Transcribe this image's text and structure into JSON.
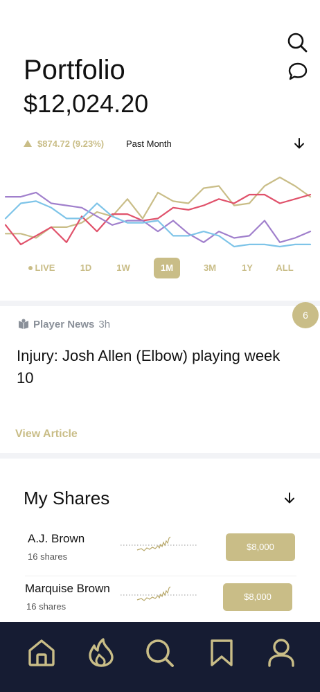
{
  "header": {
    "title": "Portfolio",
    "value": "$12,024.20",
    "search_icon": "search-icon",
    "chat_icon": "chat-bubble-icon"
  },
  "performance": {
    "change": "$874.72 (9.23%)",
    "period": "Past Month",
    "direction": "up"
  },
  "chart_data": {
    "type": "line",
    "x": [
      0,
      1,
      2,
      3,
      4,
      5,
      6,
      7,
      8,
      9,
      10,
      11,
      12,
      13,
      14,
      15,
      16,
      17,
      18,
      19,
      20
    ],
    "series": [
      {
        "color": "#c9bd87",
        "values": [
          0.3,
          0.3,
          0.2,
          0.45,
          0.45,
          0.55,
          0.8,
          0.7,
          1.1,
          0.65,
          1.25,
          1.05,
          1.0,
          1.35,
          1.4,
          0.95,
          1.0,
          1.4,
          1.6,
          1.4,
          1.15
        ]
      },
      {
        "color": "#e0526b",
        "values": [
          0.5,
          0.05,
          0.25,
          0.45,
          0.1,
          0.7,
          0.35,
          0.75,
          0.75,
          0.6,
          0.65,
          0.9,
          0.85,
          0.95,
          1.1,
          1.0,
          1.2,
          1.2,
          1.0,
          1.1,
          1.2
        ]
      },
      {
        "color": "#a07fcc",
        "values": [
          1.15,
          1.15,
          1.25,
          1.0,
          0.95,
          0.9,
          0.7,
          0.5,
          0.6,
          0.6,
          0.35,
          0.6,
          0.3,
          0.1,
          0.35,
          0.2,
          0.25,
          0.6,
          0.1,
          0.2,
          0.35
        ]
      },
      {
        "color": "#7ec4e8",
        "values": [
          0.65,
          1.0,
          1.05,
          0.9,
          0.65,
          0.65,
          1.0,
          0.7,
          0.55,
          0.55,
          0.6,
          0.25,
          0.25,
          0.35,
          0.25,
          0.0,
          0.05,
          0.05,
          0.0,
          0.05,
          0.05
        ]
      }
    ]
  },
  "range_tabs": [
    {
      "label": "LIVE",
      "active": false
    },
    {
      "label": "1D",
      "active": false
    },
    {
      "label": "1W",
      "active": false
    },
    {
      "label": "1M",
      "active": true
    },
    {
      "label": "3M",
      "active": false
    },
    {
      "label": "1Y",
      "active": false
    },
    {
      "label": "ALL",
      "active": false
    }
  ],
  "news": {
    "badge_count": "6",
    "source": "Player News",
    "time": "3h",
    "headline": "Injury: Josh Allen (Elbow) playing week 10",
    "link": "View Article"
  },
  "shares": {
    "title": "My Shares",
    "items": [
      {
        "name": "A.J. Brown",
        "count": "16 shares",
        "price": "$8,000"
      },
      {
        "name": "Marquise Brown",
        "count": "16 shares",
        "price": "$8,000"
      }
    ]
  },
  "tabbar": {
    "icons": [
      "home-icon",
      "fire-icon",
      "search-icon",
      "bookmark-icon",
      "profile-icon"
    ],
    "color": "#c9bd87",
    "background": "#161c33"
  }
}
